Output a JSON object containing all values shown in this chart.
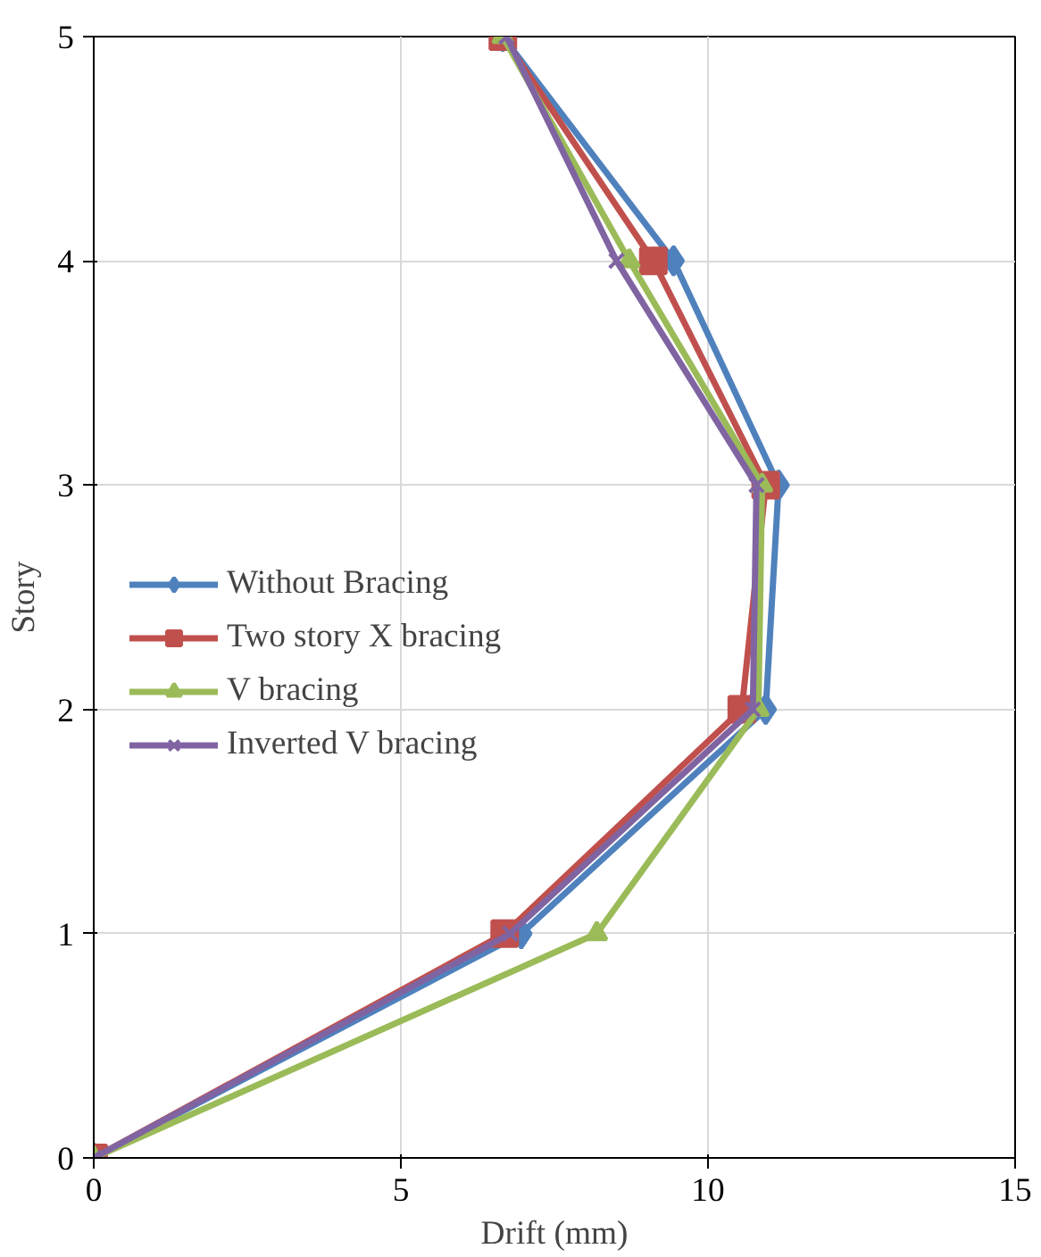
{
  "chart_data": {
    "type": "line",
    "xlabel": "Drift (mm)",
    "ylabel": "Story",
    "xlim": [
      0,
      15
    ],
    "xticks": [
      0,
      5,
      10,
      15
    ],
    "ylim": [
      0,
      5
    ],
    "yticks": [
      0,
      1,
      2,
      3,
      4,
      5
    ],
    "grid": true,
    "legend": "left",
    "line_style": "solid",
    "series": [
      {
        "name": "Without Bracing",
        "color": "#4f81bd",
        "marker": "diamond",
        "x": [
          0,
          6.96,
          10.94,
          11.15,
          9.44,
          6.66
        ],
        "values": [
          0,
          1,
          2,
          3,
          4,
          5
        ]
      },
      {
        "name": "Two story X bracing",
        "color": "#c0504d",
        "marker": "square",
        "x": [
          0,
          6.69,
          10.55,
          10.94,
          9.11,
          6.66
        ],
        "values": [
          0,
          1,
          2,
          3,
          4,
          5
        ]
      },
      {
        "name": "V bracing",
        "color": "#9bbb59",
        "marker": "triangle",
        "x": [
          0,
          8.19,
          10.82,
          10.88,
          8.72,
          6.66
        ],
        "values": [
          0,
          1,
          2,
          3,
          4,
          5
        ]
      },
      {
        "name": "Inverted V bracing",
        "color": "#8064a2",
        "marker": "cross",
        "x": [
          0,
          6.78,
          10.73,
          10.79,
          8.51,
          6.72
        ],
        "values": [
          0,
          1,
          2,
          3,
          4,
          5
        ]
      }
    ]
  }
}
